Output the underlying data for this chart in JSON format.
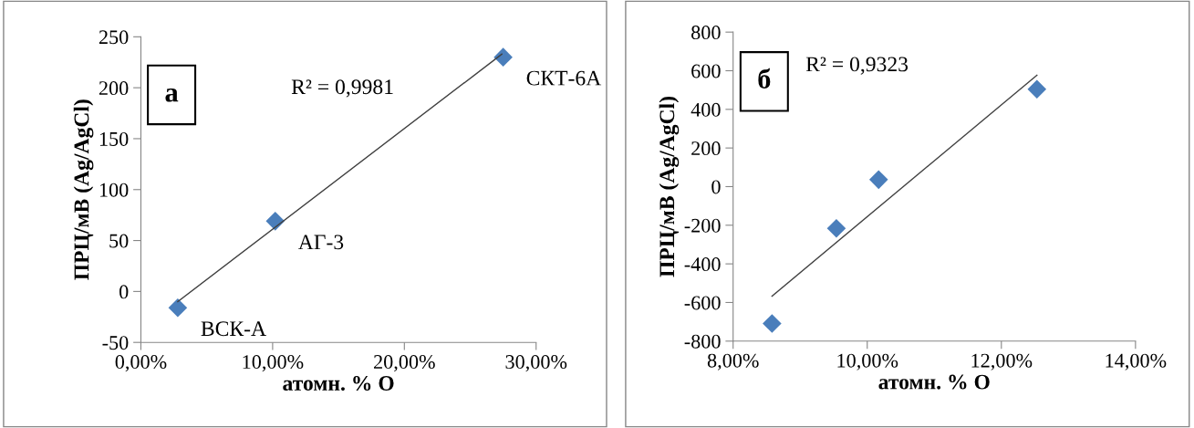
{
  "chart_data": [
    {
      "type": "scatter",
      "xlabel": "атомн. % О",
      "ylabel": "ПРЦ/мВ (Ag/AgCl)",
      "xlim": [
        0,
        0.3
      ],
      "ylim": [
        -50,
        250
      ],
      "xticks": [
        {
          "value": 0,
          "label": "0,00%"
        },
        {
          "value": 0.1,
          "label": "10,00%"
        },
        {
          "value": 0.2,
          "label": "20,00%"
        },
        {
          "value": 0.3,
          "label": "30,00%"
        }
      ],
      "yticks": [
        -50,
        0,
        50,
        100,
        150,
        200,
        250
      ],
      "grid": false,
      "legend": false,
      "series": [
        {
          "color": "#4a7ebb",
          "marker": "diamond",
          "x": [
            0.028,
            0.102,
            0.275
          ],
          "values": [
            -16,
            69,
            230
          ]
        },
        {
          "type": "line",
          "color": "#404040",
          "marker": "none",
          "line_style": "solid",
          "x": [
            0.028,
            0.274
          ],
          "values": [
            -10,
            233
          ]
        }
      ],
      "annotations": [
        "а",
        "R² = 0,9981",
        {
          "text": "ВСК-А",
          "x": 0.028,
          "y": -16
        },
        {
          "text": "АГ-3",
          "x": 0.102,
          "y": 69
        },
        {
          "text": "СКТ-6А",
          "x": 0.275,
          "y": 230
        }
      ]
    },
    {
      "type": "scatter",
      "xlabel": "атомн. % О",
      "ylabel": "ПРЦ/мВ (Ag/AgCl)",
      "xlim": [
        0.08,
        0.14
      ],
      "ylim": [
        -800,
        800
      ],
      "xticks": [
        {
          "value": 0.08,
          "label": "8,00%"
        },
        {
          "value": 0.1,
          "label": "10,00%"
        },
        {
          "value": 0.12,
          "label": "12,00%"
        },
        {
          "value": 0.14,
          "label": "14,00%"
        }
      ],
      "yticks": [
        -800,
        -600,
        -400,
        -200,
        0,
        200,
        400,
        600,
        800
      ],
      "grid": false,
      "legend": false,
      "series": [
        {
          "color": "#4a7ebb",
          "marker": "diamond",
          "x": [
            0.0858,
            0.0954,
            0.1017,
            0.1253
          ],
          "values": [
            -709,
            -216,
            36,
            504
          ]
        },
        {
          "type": "line",
          "color": "#404040",
          "marker": "none",
          "line_style": "solid",
          "x": [
            0.0858,
            0.1253
          ],
          "values": [
            -567,
            577
          ]
        }
      ],
      "annotations": [
        "б",
        "R² = 0,9323"
      ]
    }
  ]
}
